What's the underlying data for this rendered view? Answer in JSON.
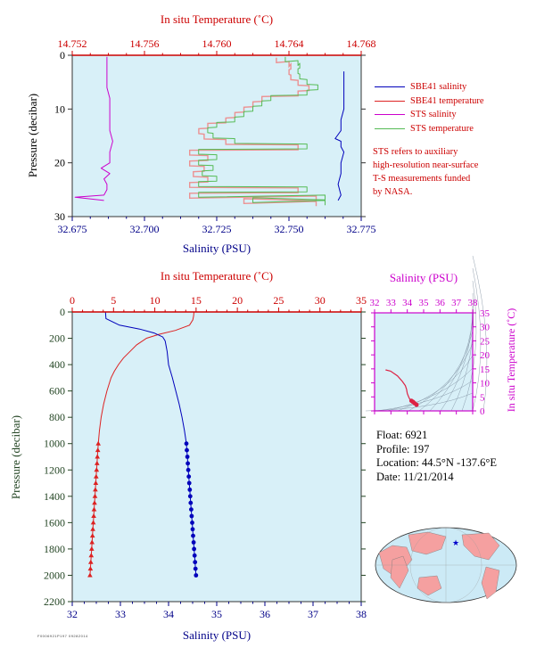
{
  "info": {
    "float": "Float:  6921",
    "profile": "Profile:  197",
    "location": "Location:  44.5°N  -137.6°E",
    "date": "Date:  11/21/2014"
  },
  "legend": [
    {
      "label": "SBE41 salinity",
      "color": "#0000bb"
    },
    {
      "label": "SBE41 temperature",
      "color": "#dd0000"
    },
    {
      "label": "STS salinity",
      "color": "#cc00cc"
    },
    {
      "label": "STS temperature",
      "color": "#44aa44"
    }
  ],
  "note_lines": [
    "STS refers to auxiliary",
    "high-resolution near-surface",
    "T-S measurements funded",
    "by NASA."
  ],
  "footer_code": "F0006921P197  09282014",
  "colors": {
    "panel_bg": "#d8f0f8",
    "axis_red": "#cc0000",
    "axis_blue": "#000088",
    "axis_green": "#224422",
    "axis_magenta": "#cc00cc",
    "salinity": "#0000bb",
    "temperature": "#dd2222",
    "sts_salinity": "#cc00cc",
    "sts_temperature": "#55bb55",
    "sts_temperature_alt": "#f08080"
  },
  "chart_data": [
    {
      "type": "line",
      "panel": "top",
      "x_top_label": "In situ Temperature (˚C)",
      "x_top_range": [
        14.752,
        14.768
      ],
      "x_top_ticks": [
        "14.752",
        "14.756",
        "14.760",
        "14.764",
        "14.768"
      ],
      "x_top_tick_values": [
        14.752,
        14.756,
        14.76,
        14.764,
        14.768
      ],
      "x_bottom_label": "Salinity (PSU)",
      "x_bottom_range": [
        32.675,
        32.775
      ],
      "x_bottom_ticks": [
        "32.675",
        "32.700",
        "32.725",
        "32.750",
        "32.775"
      ],
      "x_bottom_tick_values": [
        32.675,
        32.7,
        32.725,
        32.75,
        32.775
      ],
      "y_label": "Pressure (decibar)",
      "y_range": [
        0,
        30
      ],
      "y_ticks": [
        "0",
        "10",
        "20",
        "30"
      ],
      "y_tick_values": [
        0,
        10,
        20,
        30
      ],
      "series": [
        {
          "name": "STS salinity",
          "axis": "bottom",
          "color": "#cc00cc",
          "pressure": [
            0.3,
            2,
            4,
            6,
            8,
            10,
            12,
            14,
            16,
            18,
            20,
            21,
            22,
            23,
            24,
            25,
            26,
            26.4,
            27
          ],
          "values": [
            32.687,
            32.687,
            32.687,
            32.687,
            32.688,
            32.688,
            32.688,
            32.688,
            32.689,
            32.688,
            32.688,
            32.685,
            32.688,
            32.686,
            32.687,
            32.687,
            32.686,
            32.676,
            32.686
          ]
        },
        {
          "name": "STS temperature",
          "axis": "top",
          "color": "#55bb55",
          "pressure": [
            0.3,
            1,
            1.5,
            2.5,
            3.5,
            4.5,
            5.5,
            6.5,
            7.5,
            8.5,
            9.5,
            10.5,
            11.5,
            12.5,
            13.5,
            14.5,
            15.5,
            16.5,
            17.5,
            18.5,
            19.5,
            20.5,
            21.5,
            22.5,
            23.5,
            24.5,
            25.5,
            26,
            26.5,
            27
          ],
          "values": [
            14.7638,
            14.7645,
            14.7646,
            14.7645,
            14.7646,
            14.765,
            14.7656,
            14.765,
            14.763,
            14.7625,
            14.762,
            14.7615,
            14.761,
            14.76,
            14.7595,
            14.7598,
            14.761,
            14.765,
            14.759,
            14.76,
            14.759,
            14.7598,
            14.7592,
            14.76,
            14.759,
            14.765,
            14.759,
            14.766,
            14.762,
            14.766
          ]
        },
        {
          "name": "SBE41 salinity",
          "axis": "bottom",
          "color": "#0000bb",
          "pressure": [
            3,
            4,
            6,
            8,
            10,
            12,
            14,
            15.5,
            16,
            17,
            18,
            20,
            22,
            24,
            26,
            27
          ],
          "values": [
            32.769,
            32.769,
            32.769,
            32.769,
            32.769,
            32.768,
            32.768,
            32.766,
            32.768,
            32.768,
            32.769,
            32.768,
            32.768,
            32.767,
            32.768,
            32.767
          ]
        }
      ]
    },
    {
      "type": "line",
      "panel": "main",
      "x_top_label": "In situ Temperature (˚C)",
      "x_top_range": [
        0,
        35
      ],
      "x_top_ticks": [
        "0",
        "5",
        "10",
        "15",
        "20",
        "25",
        "30",
        "35"
      ],
      "x_top_tick_values": [
        0,
        5,
        10,
        15,
        20,
        25,
        30,
        35
      ],
      "x_bottom_label": "Salinity (PSU)",
      "x_bottom_range": [
        32,
        38
      ],
      "x_bottom_ticks": [
        "32",
        "33",
        "34",
        "35",
        "36",
        "37",
        "38"
      ],
      "x_bottom_tick_values": [
        32,
        33,
        34,
        35,
        36,
        37,
        38
      ],
      "y_label": "Pressure (decibar)",
      "y_range": [
        0,
        2200
      ],
      "y_ticks": [
        "0",
        "200",
        "400",
        "600",
        "800",
        "1000",
        "1200",
        "1400",
        "1600",
        "1800",
        "2000",
        "2200"
      ],
      "y_tick_values": [
        0,
        200,
        400,
        600,
        800,
        1000,
        1200,
        1400,
        1600,
        1800,
        2000,
        2200
      ],
      "series": [
        {
          "name": "SBE41 temperature",
          "axis": "top",
          "color": "#dd2222",
          "pressure": [
            0,
            30,
            60,
            100,
            140,
            170,
            200,
            250,
            300,
            350,
            400,
            450,
            500,
            600,
            700,
            800,
            900,
            1000
          ],
          "values": [
            14.75,
            14.7,
            14.6,
            14.2,
            12.5,
            10.5,
            9.0,
            7.8,
            7.0,
            6.2,
            5.6,
            5.1,
            4.7,
            4.2,
            3.8,
            3.5,
            3.3,
            3.15
          ],
          "marker_pressure": [
            1000,
            1050,
            1100,
            1150,
            1200,
            1250,
            1300,
            1350,
            1400,
            1450,
            1500,
            1550,
            1600,
            1650,
            1700,
            1750,
            1800,
            1850,
            1900,
            1950,
            2000
          ],
          "marker_values": [
            3.15,
            3.1,
            3.05,
            3.0,
            2.95,
            2.9,
            2.85,
            2.8,
            2.75,
            2.7,
            2.65,
            2.6,
            2.55,
            2.5,
            2.45,
            2.4,
            2.35,
            2.3,
            2.25,
            2.2,
            2.15
          ]
        },
        {
          "name": "SBE41 salinity",
          "axis": "bottom",
          "color": "#0000bb",
          "pressure": [
            0,
            50,
            100,
            130,
            160,
            190,
            220,
            260,
            300,
            400,
            500,
            600,
            700,
            800,
            900,
            1000
          ],
          "values": [
            32.69,
            32.7,
            32.98,
            33.4,
            33.7,
            33.88,
            33.93,
            33.95,
            33.97,
            34.0,
            34.08,
            34.15,
            34.22,
            34.28,
            34.33,
            34.37
          ],
          "marker_pressure": [
            1000,
            1050,
            1100,
            1150,
            1200,
            1250,
            1300,
            1350,
            1400,
            1450,
            1500,
            1550,
            1600,
            1650,
            1700,
            1750,
            1800,
            1850,
            1900,
            1950,
            2000
          ],
          "marker_values": [
            34.37,
            34.38,
            34.39,
            34.4,
            34.41,
            34.42,
            34.43,
            34.44,
            34.45,
            34.46,
            34.47,
            34.48,
            34.49,
            34.5,
            34.51,
            34.52,
            34.53,
            34.54,
            34.55,
            34.56,
            34.57
          ]
        }
      ]
    },
    {
      "type": "scatter",
      "panel": "ts-diagram",
      "x_label": "Salinity (PSU)",
      "x_range": [
        32,
        38
      ],
      "x_ticks": [
        "32",
        "33",
        "34",
        "35",
        "36",
        "37",
        "38"
      ],
      "x_tick_values": [
        32,
        33,
        34,
        35,
        36,
        37,
        38
      ],
      "y_label": "In situ Temperature (˚C)",
      "y_range": [
        0,
        35
      ],
      "y_ticks": [
        "0",
        "5",
        "10",
        "15",
        "20",
        "25",
        "30",
        "35"
      ],
      "y_tick_values": [
        0,
        5,
        10,
        15,
        20,
        25,
        30,
        35
      ],
      "series": [
        {
          "name": "T-S",
          "color": "#dd2244",
          "salinity": [
            32.69,
            32.7,
            32.98,
            33.4,
            33.7,
            33.88,
            33.95,
            34.0,
            34.08,
            34.15,
            34.25,
            34.33,
            34.37,
            34.45,
            34.57
          ],
          "temperature": [
            14.75,
            14.6,
            14.2,
            12.5,
            10.5,
            9.0,
            7.8,
            6.2,
            5.1,
            4.2,
            3.6,
            3.3,
            3.15,
            2.7,
            2.15
          ]
        }
      ]
    }
  ]
}
